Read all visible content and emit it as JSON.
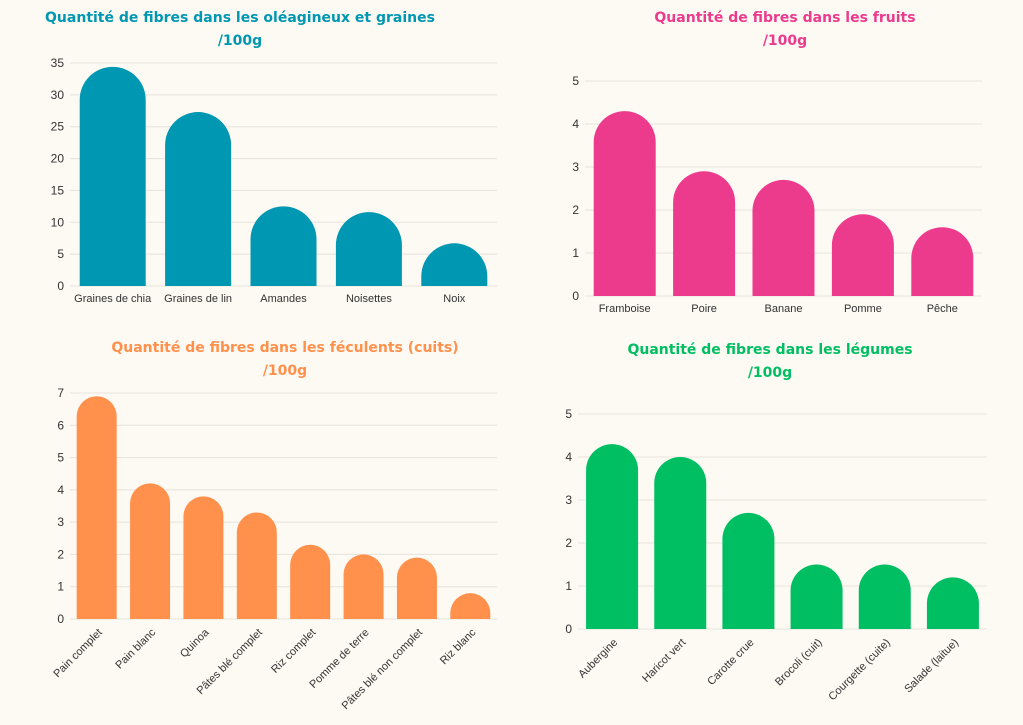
{
  "chart_data": [
    {
      "type": "bar",
      "title": [
        "Quantité de fibres dans les oléagineux et graines",
        "/100g"
      ],
      "color": "#0097b2",
      "categories": [
        "Graines de chia",
        "Graines de lin",
        "Amandes",
        "Noisettes",
        "Noix"
      ],
      "values": [
        34.4,
        27.3,
        12.5,
        11.6,
        6.7
      ],
      "yticks": [
        "0",
        "5",
        "10",
        "15",
        "20",
        "25",
        "30",
        "35"
      ],
      "ylim": [
        0,
        35
      ],
      "grid": true,
      "label_rotation": 0
    },
    {
      "type": "bar",
      "title": [
        "Quantité de fibres dans les fruits",
        "/100g"
      ],
      "color": "#ec3b8d",
      "categories": [
        "Framboise",
        "Poire",
        "Banane",
        "Pomme",
        "Pêche"
      ],
      "values": [
        4.3,
        2.9,
        2.7,
        1.9,
        1.6
      ],
      "yticks": [
        "0",
        "1",
        "2",
        "3",
        "4",
        "5"
      ],
      "ylim": [
        0,
        5
      ],
      "grid": true,
      "label_rotation": 0
    },
    {
      "type": "bar",
      "title": [
        "Quantité de fibres dans les féculents (cuits)",
        "/100g"
      ],
      "color": "#ff914d",
      "categories": [
        "Pain complet",
        "Pain blanc",
        "Quinoa",
        "Pâtes blé complet",
        "Riz complet",
        "Pomme de terre",
        "Pâtes blé non complet",
        "Riz blanc"
      ],
      "values": [
        6.9,
        4.2,
        3.8,
        3.3,
        2.3,
        2.0,
        1.9,
        0.8
      ],
      "yticks": [
        "0",
        "1",
        "2",
        "3",
        "4",
        "5",
        "6",
        "7"
      ],
      "ylim": [
        0,
        7
      ],
      "grid": true,
      "label_rotation": -45
    },
    {
      "type": "bar",
      "title": [
        "Quantité de fibres dans les légumes",
        "/100g"
      ],
      "color": "#00bf63",
      "categories": [
        "Aubergine",
        "Haricot vert",
        "Carotte crue",
        "Brocoli (cuit)",
        "Courgette (cuite)",
        "Salade (laitue)"
      ],
      "values": [
        4.3,
        4.0,
        2.7,
        1.5,
        1.5,
        1.2
      ],
      "yticks": [
        "0",
        "1",
        "2",
        "3",
        "4",
        "5"
      ],
      "ylim": [
        0,
        5
      ],
      "grid": true,
      "label_rotation": -45
    }
  ]
}
